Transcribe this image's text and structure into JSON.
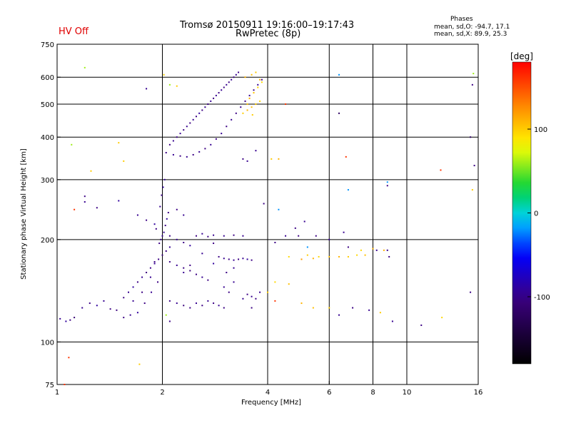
{
  "status": {
    "text": "HV Off",
    "color": "#e00000"
  },
  "header": {
    "title_line1": "Tromsø 20150911 19:16:00–19:17:43",
    "title_line2": "RwPretec (8p)"
  },
  "stats": {
    "heading": "Phases",
    "line1": "mean, sd,O: -94.7, 17.1",
    "line2": "mean, sd,X:  89.9, 25.3"
  },
  "chart_data": {
    "type": "scatter",
    "title": "Tromsø 20150911 19:16:00–19:17:43",
    "subtitle": "RwPretec (8p)",
    "xlabel": "Frequency [MHz]",
    "ylabel": "Stationary phase Virtual Height [km]",
    "xscale": "log",
    "yscale": "log",
    "xlim": [
      1,
      16
    ],
    "ylim": [
      75,
      750
    ],
    "xticks": [
      1,
      2,
      4,
      6,
      8,
      10,
      16
    ],
    "xtick_labels": [
      "1",
      "2",
      "4",
      "6",
      "8",
      "10",
      "16"
    ],
    "yticks": [
      75,
      100,
      200,
      300,
      400,
      500,
      600,
      750
    ],
    "ytick_labels": [
      "75",
      "100",
      "200",
      "300",
      "400",
      "500",
      "600",
      "750"
    ],
    "x_gridlines": [
      2,
      4,
      6,
      8,
      10
    ],
    "y_gridlines": [
      100,
      200,
      300,
      400,
      500,
      600
    ],
    "grid": true,
    "colorbar": {
      "label": "[deg]",
      "range": [
        -180,
        180
      ],
      "tick_values": [
        100,
        0,
        -100
      ],
      "tick_labels": [
        "100",
        "0",
        "-100"
      ]
    },
    "points": [
      [
        1.02,
        117,
        -95
      ],
      [
        1.06,
        115,
        -90
      ],
      [
        1.09,
        116,
        -100
      ],
      [
        1.12,
        118,
        -110
      ],
      [
        1.18,
        126,
        -95
      ],
      [
        1.24,
        130,
        -100
      ],
      [
        1.3,
        128,
        -90
      ],
      [
        1.36,
        132,
        -95
      ],
      [
        1.42,
        125,
        -100
      ],
      [
        1.48,
        124,
        -105
      ],
      [
        1.55,
        118,
        -100
      ],
      [
        1.62,
        120,
        -95
      ],
      [
        1.7,
        122,
        -90
      ],
      [
        1.78,
        130,
        -100
      ],
      [
        1.86,
        140,
        -95
      ],
      [
        1.94,
        150,
        -100
      ],
      [
        1.55,
        135,
        -100
      ],
      [
        1.6,
        140,
        -95
      ],
      [
        1.65,
        145,
        -90
      ],
      [
        1.7,
        150,
        -100
      ],
      [
        1.75,
        155,
        -95
      ],
      [
        1.8,
        160,
        -105
      ],
      [
        1.85,
        165,
        -100
      ],
      [
        1.9,
        170,
        -95
      ],
      [
        1.95,
        175,
        -100
      ],
      [
        2.0,
        180,
        -110
      ],
      [
        2.05,
        185,
        -100
      ],
      [
        2.1,
        190,
        -95
      ],
      [
        1.98,
        200,
        -100
      ],
      [
        2.02,
        210,
        -95
      ],
      [
        2.04,
        220,
        -100
      ],
      [
        2.06,
        230,
        -90
      ],
      [
        2.08,
        240,
        -100
      ],
      [
        1.97,
        250,
        -95
      ],
      [
        1.99,
        270,
        -100
      ],
      [
        2.01,
        285,
        -90
      ],
      [
        2.03,
        300,
        -95
      ],
      [
        1.92,
        215,
        -100
      ],
      [
        1.96,
        195,
        -100
      ],
      [
        2.0,
        205,
        -95
      ],
      [
        2.1,
        172,
        -100
      ],
      [
        2.2,
        168,
        -95
      ],
      [
        2.3,
        165,
        -100
      ],
      [
        2.4,
        162,
        -105
      ],
      [
        2.5,
        158,
        -100
      ],
      [
        2.6,
        155,
        -95
      ],
      [
        2.7,
        152,
        -100
      ],
      [
        2.8,
        170,
        -90
      ],
      [
        2.9,
        178,
        -100
      ],
      [
        3.0,
        176,
        -95
      ],
      [
        3.1,
        175,
        -100
      ],
      [
        3.2,
        174,
        -95
      ],
      [
        3.3,
        175,
        -100
      ],
      [
        3.4,
        176,
        -95
      ],
      [
        3.5,
        175,
        -90
      ],
      [
        3.6,
        174,
        -100
      ],
      [
        2.1,
        205,
        -100
      ],
      [
        2.2,
        200,
        -95
      ],
      [
        2.3,
        196,
        -100
      ],
      [
        2.4,
        192,
        -90
      ],
      [
        2.5,
        205,
        -100
      ],
      [
        2.6,
        208,
        -95
      ],
      [
        2.7,
        204,
        -100
      ],
      [
        2.8,
        206,
        -95
      ],
      [
        3.0,
        205,
        -95
      ],
      [
        3.2,
        206,
        -100
      ],
      [
        3.4,
        205,
        -95
      ],
      [
        2.1,
        132,
        -100
      ],
      [
        2.2,
        130,
        -95
      ],
      [
        2.3,
        128,
        -105
      ],
      [
        2.4,
        126,
        -100
      ],
      [
        2.5,
        130,
        -95
      ],
      [
        2.6,
        128,
        -100
      ],
      [
        2.7,
        132,
        -95
      ],
      [
        2.8,
        130,
        -100
      ],
      [
        2.9,
        128,
        -95
      ],
      [
        3.0,
        126,
        -100
      ],
      [
        3.4,
        134,
        -95
      ],
      [
        3.5,
        138,
        -100
      ],
      [
        3.6,
        136,
        -95
      ],
      [
        3.7,
        134,
        -100
      ],
      [
        2.1,
        380,
        -100
      ],
      [
        2.15,
        390,
        -95
      ],
      [
        2.2,
        400,
        -100
      ],
      [
        2.25,
        410,
        -95
      ],
      [
        2.3,
        420,
        -100
      ],
      [
        2.35,
        430,
        -95
      ],
      [
        2.4,
        440,
        -100
      ],
      [
        2.45,
        450,
        -95
      ],
      [
        2.5,
        460,
        -100
      ],
      [
        2.55,
        470,
        -90
      ],
      [
        2.6,
        480,
        -100
      ],
      [
        2.65,
        490,
        -95
      ],
      [
        2.7,
        500,
        -100
      ],
      [
        2.75,
        510,
        -95
      ],
      [
        2.8,
        520,
        -100
      ],
      [
        2.85,
        530,
        -95
      ],
      [
        2.9,
        540,
        -100
      ],
      [
        2.95,
        550,
        -95
      ],
      [
        3.0,
        560,
        -100
      ],
      [
        3.05,
        570,
        -95
      ],
      [
        3.1,
        580,
        -100
      ],
      [
        3.15,
        590,
        -95
      ],
      [
        3.2,
        600,
        -100
      ],
      [
        3.25,
        610,
        -95
      ],
      [
        3.3,
        620,
        -100
      ],
      [
        2.05,
        360,
        -100
      ],
      [
        2.15,
        355,
        -95
      ],
      [
        2.25,
        352,
        -100
      ],
      [
        2.35,
        350,
        -95
      ],
      [
        2.45,
        355,
        -100
      ],
      [
        2.55,
        362,
        -95
      ],
      [
        2.65,
        370,
        -100
      ],
      [
        2.75,
        380,
        -95
      ],
      [
        2.85,
        395,
        -100
      ],
      [
        2.95,
        410,
        -95
      ],
      [
        3.05,
        430,
        -100
      ],
      [
        3.15,
        450,
        -95
      ],
      [
        3.25,
        470,
        -100
      ],
      [
        3.35,
        490,
        -95
      ],
      [
        3.45,
        510,
        -100
      ],
      [
        3.55,
        530,
        -95
      ],
      [
        3.65,
        550,
        -100
      ],
      [
        3.75,
        570,
        -95
      ],
      [
        3.85,
        590,
        -100
      ],
      [
        3.4,
        470,
        100
      ],
      [
        3.5,
        480,
        110
      ],
      [
        3.6,
        490,
        105
      ],
      [
        3.7,
        500,
        100
      ],
      [
        3.8,
        510,
        95
      ],
      [
        3.55,
        520,
        110
      ],
      [
        3.65,
        540,
        105
      ],
      [
        3.75,
        560,
        100
      ],
      [
        3.85,
        580,
        95
      ],
      [
        3.45,
        600,
        110
      ],
      [
        3.6,
        610,
        105
      ],
      [
        3.7,
        620,
        100
      ],
      [
        3.8,
        590,
        110
      ],
      [
        3.5,
        500,
        105
      ],
      [
        3.62,
        465,
        100
      ],
      [
        3.4,
        345,
        -100
      ],
      [
        3.5,
        340,
        -95
      ],
      [
        3.7,
        365,
        -95
      ],
      [
        4.1,
        345,
        100
      ],
      [
        4.3,
        345,
        110
      ],
      [
        5.0,
        175,
        120
      ],
      [
        4.6,
        178,
        95
      ],
      [
        5.2,
        180,
        100
      ],
      [
        5.4,
        176,
        110
      ],
      [
        5.6,
        178,
        95
      ],
      [
        6.0,
        178,
        105
      ],
      [
        6.4,
        178,
        110
      ],
      [
        6.8,
        178,
        100
      ],
      [
        7.2,
        180,
        95
      ],
      [
        7.6,
        180,
        105
      ],
      [
        8.2,
        186,
        -95
      ],
      [
        8.6,
        186,
        110
      ],
      [
        8.8,
        186,
        -95
      ],
      [
        8.9,
        178,
        -100
      ],
      [
        5.5,
        205,
        -100
      ],
      [
        6.0,
        200,
        -95
      ],
      [
        4.8,
        216,
        -100
      ],
      [
        5.1,
        226,
        -95
      ],
      [
        4.2,
        196,
        -100
      ],
      [
        4.5,
        205,
        -95
      ],
      [
        6.6,
        210,
        -95
      ],
      [
        6.8,
        190,
        -100
      ],
      [
        7.4,
        186,
        95
      ],
      [
        8.0,
        188,
        110
      ],
      [
        3.0,
        145,
        -95
      ],
      [
        3.1,
        140,
        -100
      ],
      [
        3.2,
        150,
        -95
      ],
      [
        3.6,
        126,
        -100
      ],
      [
        3.8,
        140,
        -95
      ],
      [
        4.0,
        140,
        100
      ],
      [
        4.2,
        150,
        95
      ],
      [
        4.6,
        148,
        105
      ],
      [
        5.0,
        130,
        110
      ],
      [
        5.4,
        126,
        105
      ],
      [
        6.0,
        126,
        100
      ],
      [
        6.4,
        120,
        -95
      ],
      [
        7.0,
        126,
        -100
      ],
      [
        7.8,
        124,
        -95
      ],
      [
        8.4,
        122,
        100
      ],
      [
        9.1,
        115,
        -95
      ],
      [
        11.0,
        112,
        -100
      ],
      [
        12.6,
        118,
        95
      ],
      [
        15.2,
        140,
        -100
      ],
      [
        1.2,
        268,
        -100
      ],
      [
        1.2,
        258,
        -95
      ],
      [
        1.3,
        248,
        -100
      ],
      [
        1.5,
        260,
        -90
      ],
      [
        1.7,
        236,
        -95
      ],
      [
        1.8,
        228,
        -100
      ],
      [
        1.9,
        222,
        -90
      ],
      [
        1.2,
        640,
        60
      ],
      [
        1.1,
        380,
        60
      ],
      [
        1.5,
        385,
        100
      ],
      [
        1.55,
        340,
        100
      ],
      [
        1.8,
        555,
        -95
      ],
      [
        1.12,
        245,
        160
      ],
      [
        1.08,
        90,
        160
      ],
      [
        1.05,
        75,
        160
      ],
      [
        1.25,
        318,
        100
      ],
      [
        1.72,
        86,
        100
      ],
      [
        2.02,
        610,
        100
      ],
      [
        2.2,
        565,
        100
      ],
      [
        2.1,
        570,
        60
      ],
      [
        2.2,
        245,
        -100
      ],
      [
        2.3,
        236,
        -95
      ],
      [
        2.05,
        120,
        60
      ],
      [
        2.1,
        115,
        -100
      ],
      [
        4.5,
        500,
        160
      ],
      [
        6.4,
        470,
        -120
      ],
      [
        6.7,
        350,
        160
      ],
      [
        6.8,
        280,
        -20
      ],
      [
        8.8,
        295,
        -20
      ],
      [
        8.8,
        288,
        -100
      ],
      [
        12.5,
        320,
        160
      ],
      [
        15.4,
        570,
        -100
      ],
      [
        15.6,
        330,
        -100
      ],
      [
        15.2,
        400,
        -120
      ],
      [
        15.4,
        280,
        100
      ],
      [
        15.5,
        615,
        60
      ],
      [
        6.4,
        610,
        -20
      ],
      [
        3.9,
        255,
        -100
      ],
      [
        4.3,
        245,
        -20
      ],
      [
        4.9,
        205,
        -100
      ],
      [
        5.2,
        190,
        -20
      ],
      [
        4.2,
        132,
        160
      ],
      [
        3.05,
        160,
        -100
      ],
      [
        3.2,
        165,
        -95
      ],
      [
        2.8,
        195,
        -100
      ],
      [
        2.6,
        182,
        -95
      ],
      [
        2.4,
        168,
        -100
      ],
      [
        2.3,
        160,
        -95
      ],
      [
        1.9,
        172,
        -100
      ],
      [
        1.85,
        155,
        -95
      ],
      [
        1.75,
        140,
        -100
      ],
      [
        1.65,
        132,
        -95
      ]
    ]
  }
}
